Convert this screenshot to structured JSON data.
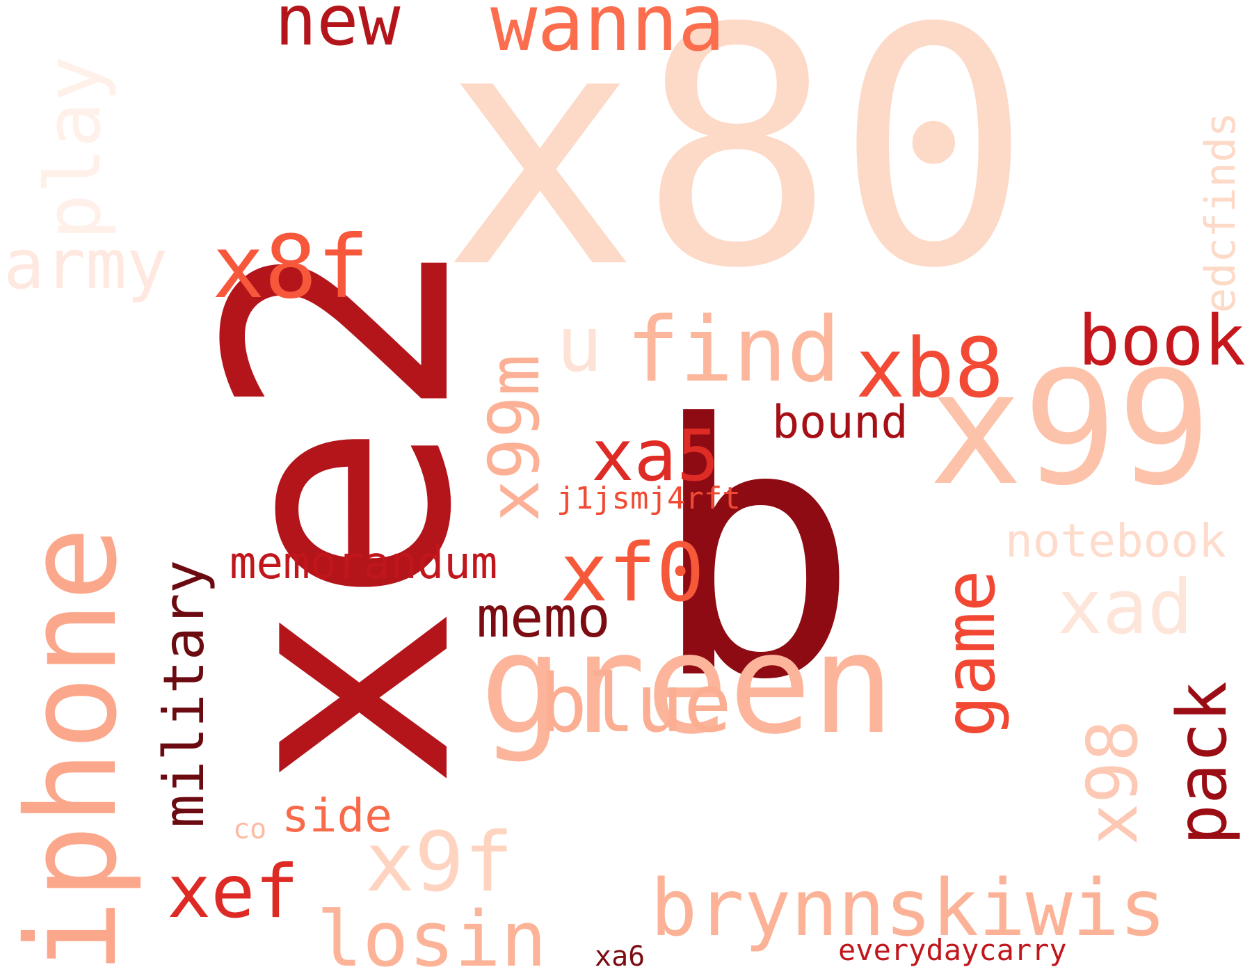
{
  "words": [
    {
      "text": "x80",
      "color": "#fdd9c7"
    },
    {
      "text": "xe2",
      "color": "#b3151b"
    },
    {
      "text": "b",
      "color": "#8e0b14"
    },
    {
      "text": "iphone",
      "color": "#fba78b"
    },
    {
      "text": "green",
      "color": "#fcb59b"
    },
    {
      "text": "x99",
      "color": "#fdc3aa"
    },
    {
      "text": "new",
      "color": "#b3151b"
    },
    {
      "text": "wanna",
      "color": "#fb6d4d"
    },
    {
      "text": "play",
      "color": "#fff0ea"
    },
    {
      "text": "army",
      "color": "#fee8df"
    },
    {
      "text": "x8f",
      "color": "#f7583b"
    },
    {
      "text": "edcfinds",
      "color": "#fdd9c7"
    },
    {
      "text": "u",
      "color": "#fee2d5"
    },
    {
      "text": "find",
      "color": "#fcb69c"
    },
    {
      "text": "xb8",
      "color": "#f24a35"
    },
    {
      "text": "book",
      "color": "#c5171c"
    },
    {
      "text": "x99m",
      "color": "#fcb095"
    },
    {
      "text": "bound",
      "color": "#a50f15"
    },
    {
      "text": "xa5",
      "color": "#de2b25"
    },
    {
      "text": "j1jsmj4rft",
      "color": "#f14a33"
    },
    {
      "text": "notebook",
      "color": "#fedbcb"
    },
    {
      "text": "military",
      "color": "#6b0a10"
    },
    {
      "text": "memorandum",
      "color": "#c0161c"
    },
    {
      "text": "xf0",
      "color": "#f6583a"
    },
    {
      "text": "memo",
      "color": "#7a0c12"
    },
    {
      "text": "game",
      "color": "#f24733"
    },
    {
      "text": "xad",
      "color": "#fee5da"
    },
    {
      "text": "blue",
      "color": "#fcae92"
    },
    {
      "text": "x98",
      "color": "#fdc9b4"
    },
    {
      "text": "pack",
      "color": "#9b0d14"
    },
    {
      "text": "co",
      "color": "#fcbba2"
    },
    {
      "text": "side",
      "color": "#f96a4a"
    },
    {
      "text": "xef",
      "color": "#de2a25"
    },
    {
      "text": "x9f",
      "color": "#fed4c1"
    },
    {
      "text": "brynnskiwis",
      "color": "#fcb296"
    },
    {
      "text": "losin",
      "color": "#fcb398"
    },
    {
      "text": "xa6",
      "color": "#7a0c12"
    },
    {
      "text": "everydaycarry",
      "color": "#c0161c"
    }
  ]
}
